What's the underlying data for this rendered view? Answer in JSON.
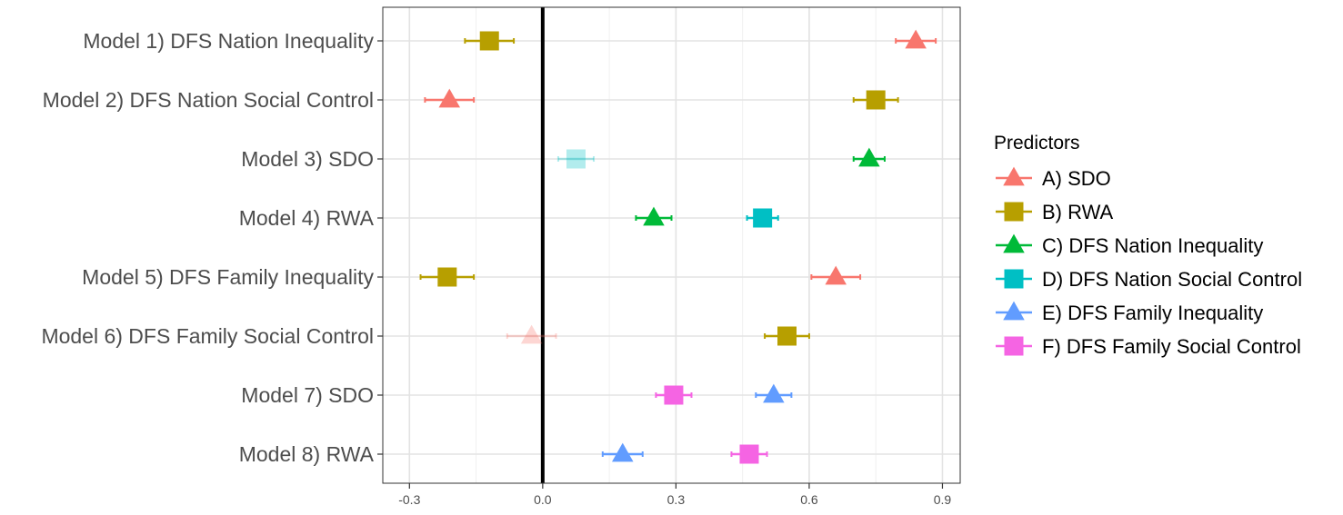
{
  "chart_data": {
    "type": "scatter",
    "subtype": "forest-plot",
    "title": "",
    "xlabel": "",
    "ylabel": "",
    "xlim": [
      -0.36,
      0.94
    ],
    "x_ticks": [
      -0.3,
      0.0,
      0.3,
      0.6,
      0.9
    ],
    "x_tick_labels": [
      "-0.3",
      "0.0",
      "0.3",
      "0.6",
      "0.9"
    ],
    "reference_line_x": 0.0,
    "grid": true,
    "categories": [
      "Model 1) DFS Nation Inequality",
      "Model 2) DFS Nation Social Control",
      "Model 3) SDO",
      "Model 4) RWA",
      "Model 5) DFS Family Inequality",
      "Model 6) DFS Family Social Control",
      "Model 7) SDO",
      "Model 8) RWA"
    ],
    "legend": {
      "title": "Predictors",
      "position": "right",
      "items": [
        {
          "key": "A",
          "label": "A) SDO",
          "color": "#F8766D",
          "shape": "triangle"
        },
        {
          "key": "B",
          "label": "B) RWA",
          "color": "#B79F00",
          "shape": "square"
        },
        {
          "key": "C",
          "label": "C) DFS Nation Inequality",
          "color": "#00BA38",
          "shape": "triangle"
        },
        {
          "key": "D",
          "label": "D) DFS Nation Social Control",
          "color": "#00BFC4",
          "shape": "square"
        },
        {
          "key": "E",
          "label": "E) DFS Family Inequality",
          "color": "#619CFF",
          "shape": "triangle"
        },
        {
          "key": "F",
          "label": "F) DFS Family Social Control",
          "color": "#F564E3",
          "shape": "square"
        }
      ]
    },
    "points": [
      {
        "model": 0,
        "predictor": "A",
        "estimate": 0.84,
        "ci": [
          0.795,
          0.885
        ],
        "faded": false
      },
      {
        "model": 0,
        "predictor": "B",
        "estimate": -0.12,
        "ci": [
          -0.175,
          -0.065
        ],
        "faded": false
      },
      {
        "model": 1,
        "predictor": "A",
        "estimate": -0.21,
        "ci": [
          -0.265,
          -0.155
        ],
        "faded": false
      },
      {
        "model": 1,
        "predictor": "B",
        "estimate": 0.75,
        "ci": [
          0.7,
          0.8
        ],
        "faded": false
      },
      {
        "model": 2,
        "predictor": "D",
        "estimate": 0.075,
        "ci": [
          0.035,
          0.115
        ],
        "faded": true
      },
      {
        "model": 2,
        "predictor": "C",
        "estimate": 0.735,
        "ci": [
          0.7,
          0.77
        ],
        "faded": false
      },
      {
        "model": 3,
        "predictor": "C",
        "estimate": 0.25,
        "ci": [
          0.21,
          0.29
        ],
        "faded": false
      },
      {
        "model": 3,
        "predictor": "D",
        "estimate": 0.495,
        "ci": [
          0.46,
          0.53
        ],
        "faded": false
      },
      {
        "model": 4,
        "predictor": "B",
        "estimate": -0.215,
        "ci": [
          -0.275,
          -0.155
        ],
        "faded": false
      },
      {
        "model": 4,
        "predictor": "A",
        "estimate": 0.66,
        "ci": [
          0.605,
          0.715
        ],
        "faded": false
      },
      {
        "model": 5,
        "predictor": "A",
        "estimate": -0.025,
        "ci": [
          -0.08,
          0.03
        ],
        "faded": true
      },
      {
        "model": 5,
        "predictor": "B",
        "estimate": 0.55,
        "ci": [
          0.5,
          0.6
        ],
        "faded": false
      },
      {
        "model": 6,
        "predictor": "F",
        "estimate": 0.295,
        "ci": [
          0.255,
          0.335
        ],
        "faded": false
      },
      {
        "model": 6,
        "predictor": "E",
        "estimate": 0.52,
        "ci": [
          0.48,
          0.56
        ],
        "faded": false
      },
      {
        "model": 7,
        "predictor": "E",
        "estimate": 0.18,
        "ci": [
          0.135,
          0.225
        ],
        "faded": false
      },
      {
        "model": 7,
        "predictor": "F",
        "estimate": 0.465,
        "ci": [
          0.425,
          0.505
        ],
        "faded": false
      }
    ]
  }
}
